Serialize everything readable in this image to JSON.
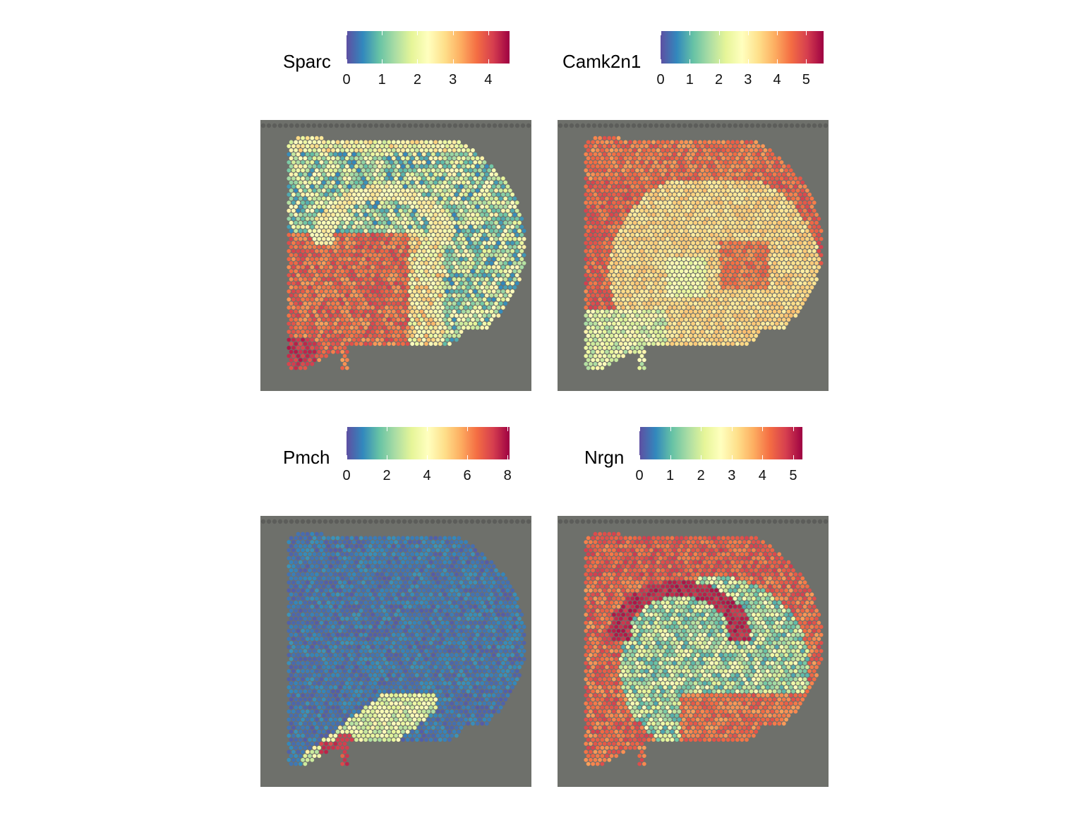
{
  "palette": [
    "#5e4fa2",
    "#3288bd",
    "#66c2a5",
    "#abdda4",
    "#e6f598",
    "#ffffbf",
    "#fee08b",
    "#fdae61",
    "#f46d43",
    "#d53e4f",
    "#9e0142"
  ],
  "chart_data": [
    {
      "type": "heatmap",
      "title": "",
      "legend": {
        "title": "Sparc",
        "min": 0,
        "max": 4.6,
        "ticks": [
          "0",
          "1",
          "2",
          "3",
          "4"
        ],
        "tick_values": [
          0,
          1,
          2,
          3,
          4
        ],
        "placement": "top"
      },
      "pattern": "sparc"
    },
    {
      "type": "heatmap",
      "title": "",
      "legend": {
        "title": "Camk2n1",
        "min": 0,
        "max": 5.6,
        "ticks": [
          "0",
          "1",
          "2",
          "3",
          "4",
          "5"
        ],
        "tick_values": [
          0,
          1,
          2,
          3,
          4,
          5
        ],
        "placement": "top"
      },
      "pattern": "camk2n1"
    },
    {
      "type": "heatmap",
      "title": "",
      "legend": {
        "title": "Pmch",
        "min": 0,
        "max": 8.1,
        "ticks": [
          "0",
          "2",
          "4",
          "6",
          "8"
        ],
        "tick_values": [
          0,
          2,
          4,
          6,
          8
        ],
        "placement": "top"
      },
      "pattern": "pmch"
    },
    {
      "type": "heatmap",
      "title": "",
      "legend": {
        "title": "Nrgn",
        "min": 0,
        "max": 5.3,
        "ticks": [
          "0",
          "1",
          "2",
          "3",
          "4",
          "5"
        ],
        "tick_values": [
          0,
          1,
          2,
          3,
          4,
          5
        ],
        "placement": "top"
      },
      "pattern": "nrgn"
    }
  ]
}
